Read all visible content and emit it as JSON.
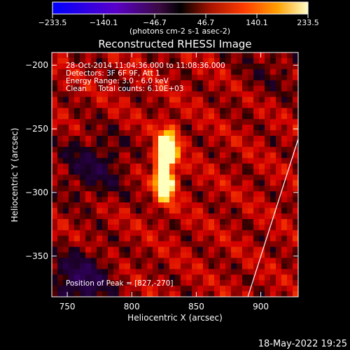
{
  "chart_data": {
    "type": "heatmap",
    "title": "Reconstructed RHESSI Image",
    "xlabel": "Heliocentric X (arcsec)",
    "ylabel": "Heliocentric Y (arcsec)",
    "xlim": [
      738,
      929
    ],
    "ylim": [
      -382,
      -190
    ],
    "x_ticks": [
      750,
      800,
      850,
      900
    ],
    "y_ticks": [
      -200,
      -250,
      -300,
      -350
    ],
    "colorbar": {
      "range": [
        -233.5,
        233.5
      ],
      "tick_labels": [
        "-233.5",
        "-140.1",
        "-46.7",
        "46.7",
        "140.1",
        "233.5"
      ],
      "unit_label": "(photons cm-2 s-1 asec-2)"
    },
    "annotations": [
      "28-Oct-2014 11:04:36.000 to 11:08:36.000",
      "Detectors: 3F 6F 9F, Att 1",
      "Energy Range: 3.0 - 6.0 keV",
      "Clean     Total counts: 6.10E+03"
    ],
    "peak_label": "Position of Peak = [827,-270]",
    "peak": {
      "x": 827,
      "y": -270,
      "value": 233.5
    },
    "sources": [
      {
        "x": 829,
        "y": -265,
        "sigma_x": 5,
        "sigma_y": 11,
        "value": 233.5
      },
      {
        "x": 827,
        "y": -295,
        "sigma_x": 5,
        "sigma_y": 9,
        "value": 200
      },
      {
        "x": 823,
        "y": -280,
        "sigma_x": 4,
        "sigma_y": 14,
        "value": 170
      }
    ],
    "limb_line": [
      [
        890,
        -382
      ],
      [
        929,
        -258
      ]
    ],
    "timestamp": "18-May-2022 19:25"
  }
}
